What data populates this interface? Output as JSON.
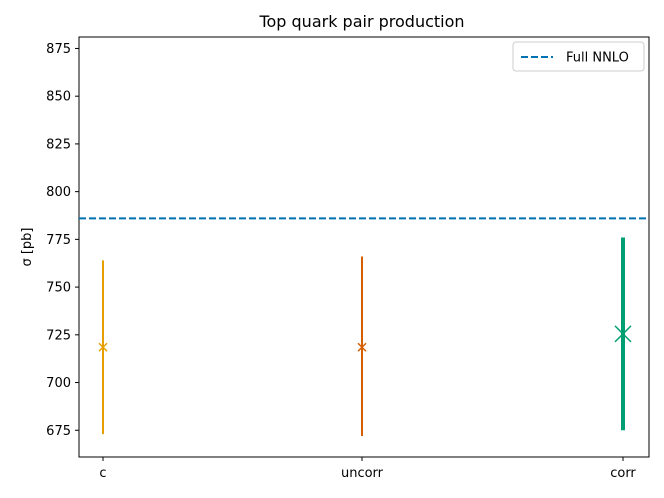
{
  "chart_data": {
    "type": "scatter",
    "title": "Top quark pair production",
    "xlabel": "",
    "ylabel": "σ [pb]",
    "ylim": [
      661,
      881
    ],
    "yticks": [
      675,
      700,
      725,
      750,
      775,
      800,
      825,
      850,
      875
    ],
    "categories": [
      "c",
      "uncorr",
      "corr"
    ],
    "series": [
      {
        "category": "c",
        "value": 718.5,
        "low": 673,
        "high": 764,
        "color": "#e69f00"
      },
      {
        "category": "uncorr",
        "value": 718.5,
        "low": 672,
        "high": 766,
        "color": "#d55e00"
      },
      {
        "category": "corr",
        "value": 725.5,
        "low": 675,
        "high": 776,
        "color": "#009e73"
      }
    ],
    "reference_line": {
      "name": "Full NNLO",
      "value": 786,
      "color": "#0072b2",
      "style": "dashed"
    },
    "legend": {
      "placement": "top-right",
      "entries": [
        "Full NNLO"
      ]
    },
    "grid": false
  }
}
